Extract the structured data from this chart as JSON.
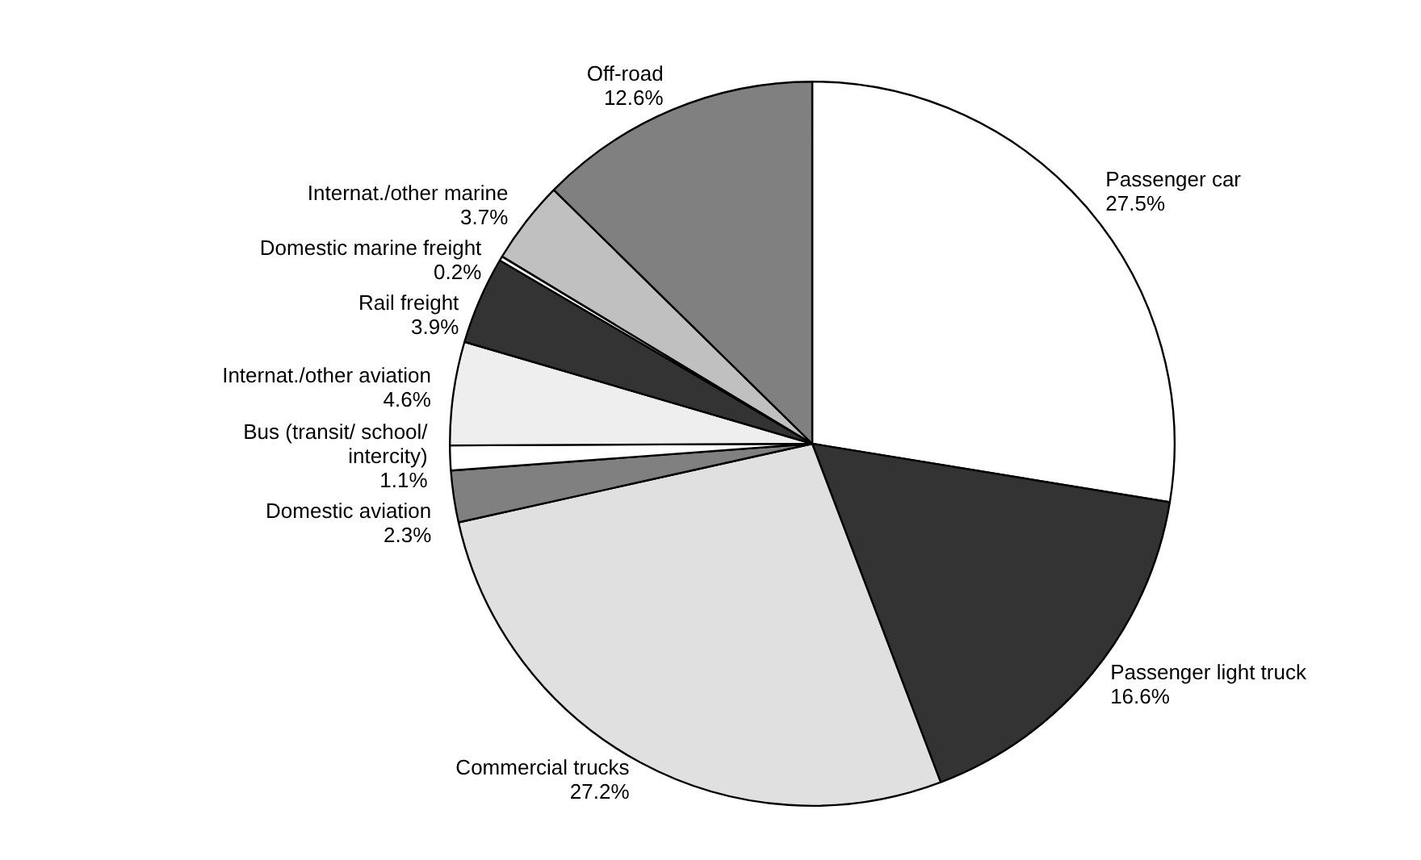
{
  "chart_data": {
    "type": "pie",
    "categories": [
      "Passenger car",
      "Passenger light truck",
      "Commercial trucks",
      "Domestic aviation",
      "Bus (transit/ school/ intercity)",
      "Internat./other aviation",
      "Rail freight",
      "Domestic marine freight",
      "Internat./other marine",
      "Off-road"
    ],
    "values": [
      27.5,
      16.6,
      27.2,
      2.3,
      1.1,
      4.6,
      3.9,
      0.2,
      3.7,
      12.6
    ],
    "value_labels": [
      "27.5%",
      "16.6%",
      "27.2%",
      "2.3%",
      "1.1%",
      "4.6%",
      "3.9%",
      "0.2%",
      "3.7%",
      "12.6%"
    ],
    "colors": [
      "#ffffff",
      "#333333",
      "#e0e0e0",
      "#808080",
      "#ffffff",
      "#eeeeee",
      "#333333",
      "#ffffff",
      "#c0c0c0",
      "#808080"
    ],
    "legend": false
  }
}
